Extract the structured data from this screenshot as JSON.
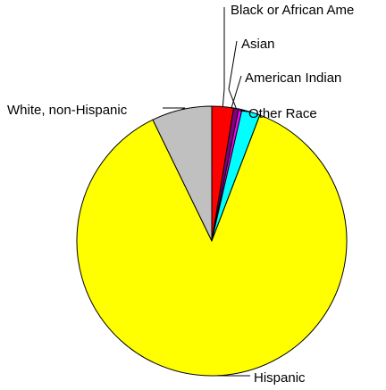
{
  "chart_data": {
    "type": "pie",
    "title": "",
    "slices": [
      {
        "label": "Black or African Ame",
        "value": 2.6,
        "color": "#ff0000"
      },
      {
        "label": "Asian",
        "value": 0.6,
        "color": "#800080"
      },
      {
        "label": "American Indian",
        "value": 0.4,
        "color": "#ff00ff"
      },
      {
        "label": "Other Race",
        "value": 2.2,
        "color": "#00ffff"
      },
      {
        "label": "Hispanic",
        "value": 87.0,
        "color": "#ffff00"
      },
      {
        "label": "White, non-Hispanic",
        "value": 7.2,
        "color": "#c0c0c0"
      }
    ],
    "start_angle": "12 o'clock",
    "direction": "clockwise",
    "legend": "none",
    "labels": "callouts with leader lines"
  }
}
